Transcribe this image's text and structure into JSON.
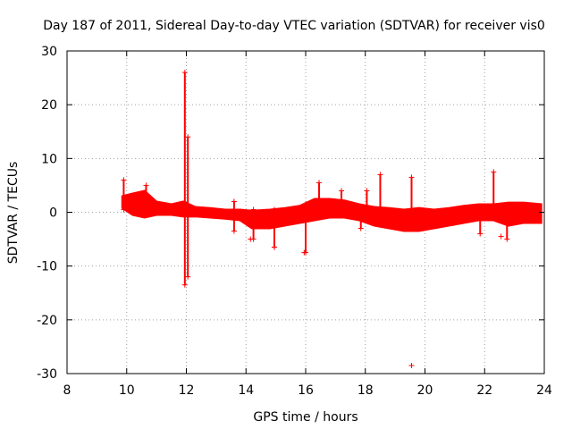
{
  "chart_data": {
    "type": "scatter",
    "title": "Day 187 of 2011, Sidereal Day-to-day VTEC variation (SDTVAR) for receiver vis0",
    "xlabel": "GPS time / hours",
    "ylabel": "SDTVAR / TECUs",
    "xlim": [
      8,
      24
    ],
    "ylim": [
      -30,
      30
    ],
    "x_ticks": [
      8,
      10,
      12,
      14,
      16,
      18,
      20,
      22,
      24
    ],
    "y_ticks": [
      -30,
      -20,
      -10,
      0,
      10,
      20,
      30
    ],
    "grid": true,
    "marker": "+",
    "color": "#ff0000",
    "series": [
      {
        "name": "SDTVAR",
        "band": [
          {
            "x": 9.85,
            "low": 0.8,
            "high": 3.0
          },
          {
            "x": 10.2,
            "low": -0.5,
            "high": 3.5
          },
          {
            "x": 10.6,
            "low": -1.0,
            "high": 4.0
          },
          {
            "x": 11.0,
            "low": -0.5,
            "high": 2.0
          },
          {
            "x": 11.5,
            "low": -0.5,
            "high": 1.5
          },
          {
            "x": 11.9,
            "low": -0.8,
            "high": 2.0
          },
          {
            "x": 12.3,
            "low": -0.8,
            "high": 1.0
          },
          {
            "x": 12.8,
            "low": -1.0,
            "high": 0.8
          },
          {
            "x": 13.3,
            "low": -1.2,
            "high": 0.5
          },
          {
            "x": 13.8,
            "low": -1.5,
            "high": 0.5
          },
          {
            "x": 14.2,
            "low": -3.0,
            "high": 0.3
          },
          {
            "x": 14.8,
            "low": -3.0,
            "high": 0.5
          },
          {
            "x": 15.3,
            "low": -2.5,
            "high": 0.8
          },
          {
            "x": 15.8,
            "low": -2.0,
            "high": 1.2
          },
          {
            "x": 16.3,
            "low": -1.5,
            "high": 2.5
          },
          {
            "x": 16.8,
            "low": -1.0,
            "high": 2.5
          },
          {
            "x": 17.3,
            "low": -1.0,
            "high": 2.2
          },
          {
            "x": 17.8,
            "low": -1.5,
            "high": 1.5
          },
          {
            "x": 18.3,
            "low": -2.5,
            "high": 1.0
          },
          {
            "x": 18.8,
            "low": -3.0,
            "high": 0.8
          },
          {
            "x": 19.3,
            "low": -3.5,
            "high": 0.5
          },
          {
            "x": 19.8,
            "low": -3.5,
            "high": 0.8
          },
          {
            "x": 20.3,
            "low": -3.0,
            "high": 0.5
          },
          {
            "x": 20.8,
            "low": -2.5,
            "high": 0.8
          },
          {
            "x": 21.3,
            "low": -2.0,
            "high": 1.2
          },
          {
            "x": 21.8,
            "low": -1.5,
            "high": 1.5
          },
          {
            "x": 22.3,
            "low": -1.5,
            "high": 1.5
          },
          {
            "x": 22.8,
            "low": -2.5,
            "high": 1.8
          },
          {
            "x": 23.3,
            "low": -2.0,
            "high": 1.8
          },
          {
            "x": 23.9,
            "low": -2.0,
            "high": 1.5
          }
        ],
        "spikes": [
          {
            "x": 9.9,
            "low": 0.5,
            "high": 6.0
          },
          {
            "x": 10.65,
            "low": 0.0,
            "high": 5.0
          },
          {
            "x": 11.95,
            "low": -13.5,
            "high": 26.0
          },
          {
            "x": 12.05,
            "low": -12.0,
            "high": 14.0
          },
          {
            "x": 13.6,
            "low": -3.5,
            "high": 2.0
          },
          {
            "x": 14.25,
            "low": -5.0,
            "high": 0.5
          },
          {
            "x": 14.95,
            "low": -6.5,
            "high": 0.5
          },
          {
            "x": 16.0,
            "low": -7.5,
            "high": 1.5
          },
          {
            "x": 16.45,
            "low": -1.0,
            "high": 5.5
          },
          {
            "x": 17.2,
            "low": 0.0,
            "high": 4.0
          },
          {
            "x": 17.85,
            "low": -3.0,
            "high": 1.0
          },
          {
            "x": 18.05,
            "low": -1.0,
            "high": 4.0
          },
          {
            "x": 18.5,
            "low": -1.0,
            "high": 7.0
          },
          {
            "x": 19.55,
            "low": -1.0,
            "high": 6.5
          },
          {
            "x": 21.85,
            "low": -4.0,
            "high": 1.0
          },
          {
            "x": 22.3,
            "low": -1.0,
            "high": 7.5
          },
          {
            "x": 22.75,
            "low": -5.0,
            "high": 1.0
          }
        ],
        "outliers": [
          {
            "x": 14.15,
            "y": -5.0
          },
          {
            "x": 14.95,
            "y": -6.5
          },
          {
            "x": 15.95,
            "y": -7.5
          },
          {
            "x": 19.55,
            "y": -28.5
          },
          {
            "x": 22.55,
            "y": -4.5
          }
        ]
      }
    ]
  }
}
